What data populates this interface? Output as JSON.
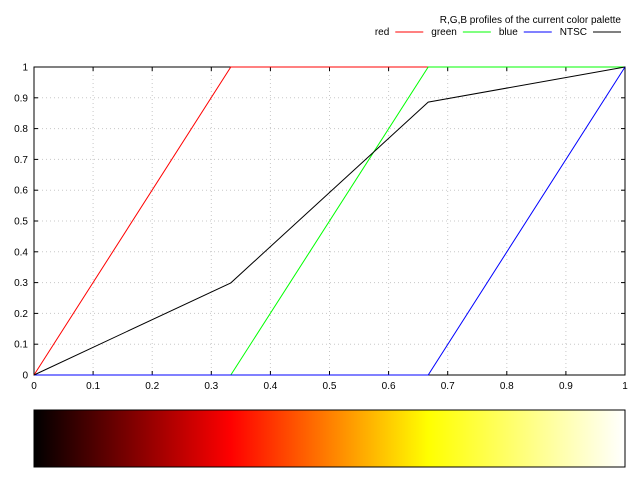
{
  "chart_data": {
    "type": "line",
    "title": "R,G,B profiles of the current color palette",
    "xlabel": "",
    "ylabel": "",
    "xlim": [
      0,
      1
    ],
    "ylim": [
      0,
      1
    ],
    "grid": true,
    "legend_placement": "top-right",
    "x_ticks": [
      "0",
      "0.1",
      "0.2",
      "0.3",
      "0.4",
      "0.5",
      "0.6",
      "0.7",
      "0.8",
      "0.9",
      "1"
    ],
    "y_ticks": [
      "0",
      "0.1",
      "0.2",
      "0.3",
      "0.4",
      "0.5",
      "0.6",
      "0.7",
      "0.8",
      "0.9",
      "1"
    ],
    "series": [
      {
        "name": "red",
        "color": "#ff0000",
        "x": [
          0,
          0.333,
          1
        ],
        "y": [
          0,
          1,
          1
        ]
      },
      {
        "name": "green",
        "color": "#00ff00",
        "x": [
          0,
          0.333,
          0.667,
          1
        ],
        "y": [
          0,
          0,
          1,
          1
        ]
      },
      {
        "name": "blue",
        "color": "#0000ff",
        "x": [
          0,
          0.667,
          1
        ],
        "y": [
          0,
          0,
          1
        ]
      },
      {
        "name": "NTSC",
        "color": "#000000",
        "x": [
          0,
          0.333,
          0.667,
          1
        ],
        "y": [
          0,
          0.299,
          0.886,
          1
        ]
      }
    ],
    "colorbar": {
      "stops": [
        {
          "pos": 0,
          "color": "#000000"
        },
        {
          "pos": 0.333,
          "color": "#ff0000"
        },
        {
          "pos": 0.667,
          "color": "#ffff00"
        },
        {
          "pos": 1,
          "color": "#ffffff"
        }
      ]
    }
  }
}
